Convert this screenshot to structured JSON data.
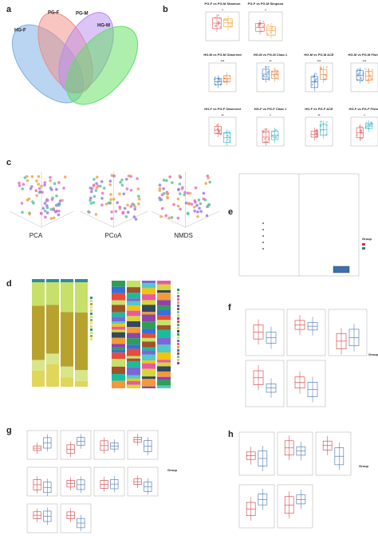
{
  "panels": [
    "a",
    "b",
    "c",
    "d",
    "e",
    "f",
    "g",
    "h"
  ],
  "venn": [
    "HG-F",
    "PG-F",
    "PG-M",
    "HG-M"
  ],
  "alpha": [
    {
      "title": "PG-F vs PG-M Shannon",
      "stars": "*"
    },
    {
      "title": "PG-F vs PG-M Simpson",
      "stars": "*"
    },
    {
      "title": "HG-M vs PG-M Observed",
      "stars": "***"
    },
    {
      "title": "HG-M vs PG-M Chao 1",
      "stars": "**"
    },
    {
      "title": "HG-M vs PG-M ACE",
      "stars": "***"
    },
    {
      "title": "HG-M vs PG-M Fisher",
      "stars": "***"
    },
    {
      "title": "HG-F vs PG-F Observed",
      "stars": "**"
    },
    {
      "title": "HG-F vs PG-F Chao 1",
      "stars": "*"
    },
    {
      "title": "HG-F vs PG-F ACE",
      "stars": "**"
    },
    {
      "title": "HG-F vs PG-F Fisher",
      "stars": "*"
    }
  ],
  "ordination": [
    "PCA",
    "PCoA",
    "NMDS"
  ],
  "group_legend": "Group"
}
